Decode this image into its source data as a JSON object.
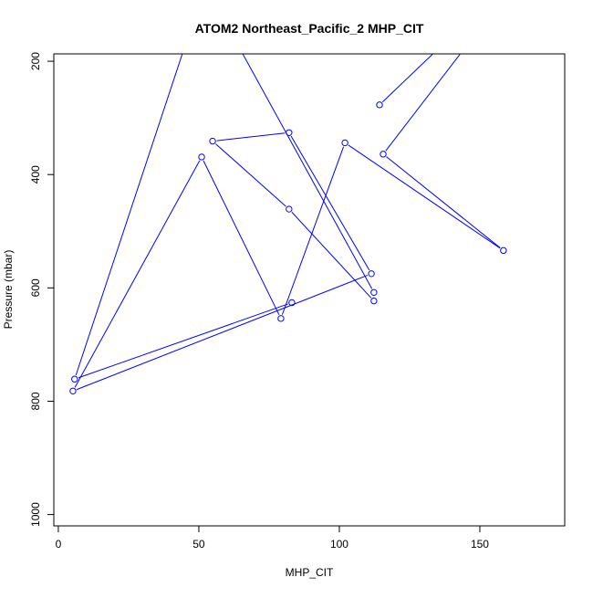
{
  "chart_data": {
    "type": "line",
    "title": "ATOM2 Northeast_Pacific_2 MHP_CIT",
    "xlabel": "MHP_CIT",
    "ylabel": "Pressure (mbar)",
    "xlim": [
      -1.6,
      180.2
    ],
    "ylim": [
      1020,
      187
    ],
    "y_reversed": true,
    "grid": false,
    "xticks": [
      0,
      50,
      100,
      150
    ],
    "yticks": [
      200,
      400,
      600,
      800,
      1000
    ],
    "color": "#0000FF",
    "style": "points-and-lines",
    "series": [
      {
        "x": [
          83.1,
          5.8,
          52.2,
          112.3,
          112.3,
          82.1,
          54.9,
          82.1,
          111.4,
          5.2,
          51.0,
          79.2,
          102.0,
          158.4,
          115.6,
          170.0,
          114.3
        ],
        "y": [
          626,
          761,
          66,
          608,
          623,
          461,
          341,
          326,
          575,
          782,
          369,
          654,
          344,
          534,
          364,
          13,
          277
        ]
      }
    ]
  }
}
